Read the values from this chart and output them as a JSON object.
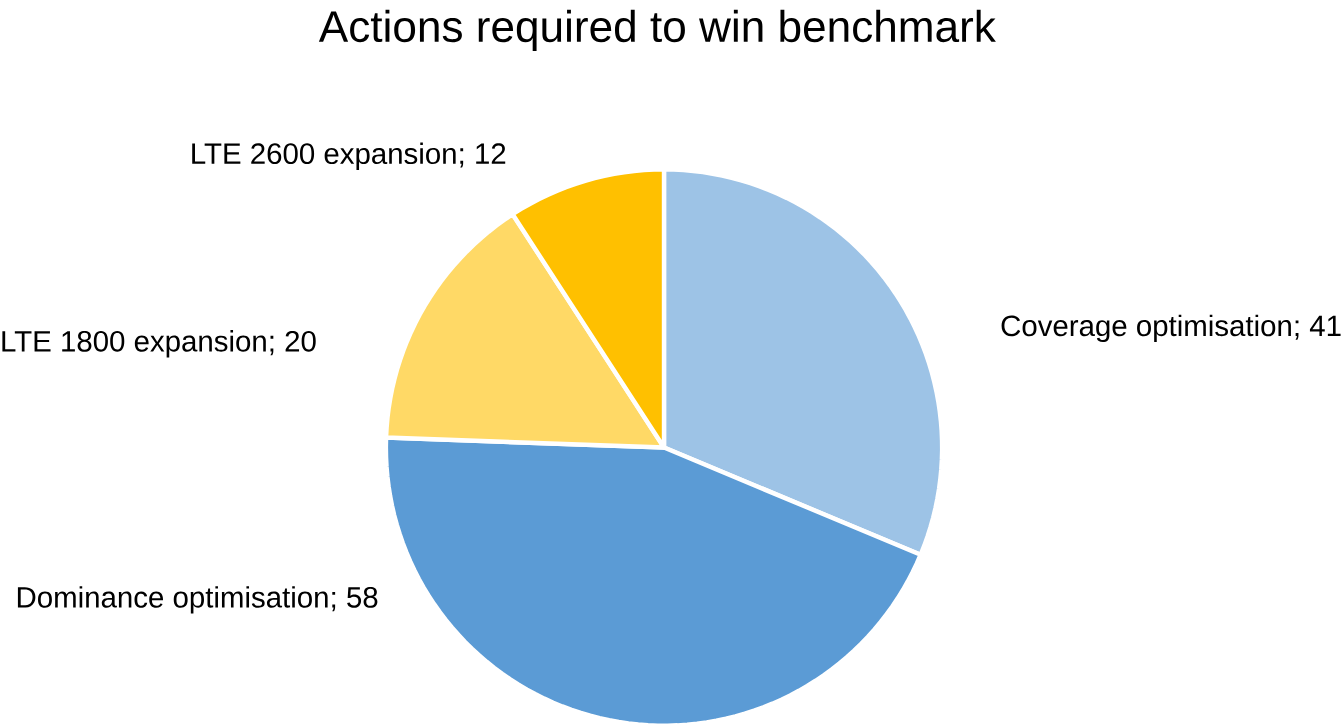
{
  "chart_data": {
    "type": "pie",
    "title": "Actions required to win benchmark",
    "categories": [
      "Coverage optimisation",
      "Dominance optimisation",
      "LTE 1800 expansion",
      "LTE 2600 expansion"
    ],
    "values": [
      41,
      58,
      20,
      12
    ],
    "colors": [
      "#9dc3e6",
      "#5b9bd5",
      "#ffd966",
      "#ffc000"
    ],
    "value_labels": [
      "; 41",
      "; 58",
      "; 20",
      "; 12"
    ]
  }
}
